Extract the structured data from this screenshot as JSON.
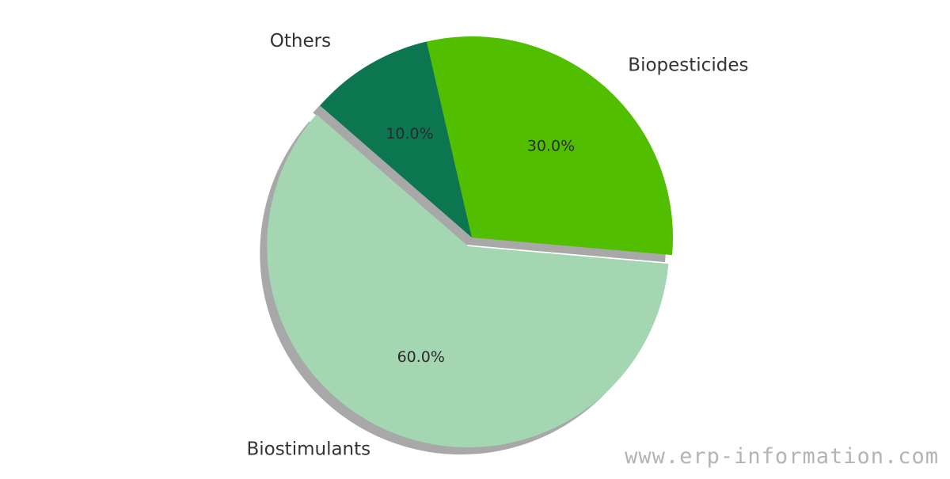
{
  "chart_data": {
    "type": "pie",
    "slices": [
      {
        "label": "Biopesticides",
        "value": 30,
        "pct_text": "30.0%",
        "color": "#52be00"
      },
      {
        "label": "Others",
        "value": 10,
        "pct_text": "10.0%",
        "color": "#0b7650"
      },
      {
        "label": "Biostimulants",
        "value": 60,
        "pct_text": "60.0%",
        "color": "#a4d6b1",
        "exploded": true
      }
    ],
    "shadow": true
  },
  "watermark": "www.erp-information.com"
}
